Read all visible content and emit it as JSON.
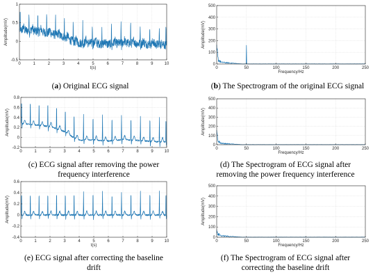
{
  "colors": {
    "signal": "#1f77b4",
    "axis": "#262626",
    "grid": "#d9d9d9",
    "background": "#ffffff"
  },
  "chart_data": [
    {
      "id": "a",
      "type": "line",
      "signal": "ecg-original",
      "xlabel": "t(s)",
      "ylabel": "Amplitude(mV)",
      "xlim": [
        0,
        10
      ],
      "ylim": [
        -0.5,
        1
      ],
      "xticks": [
        0,
        1,
        2,
        3,
        4,
        5,
        6,
        7,
        8,
        9,
        10
      ],
      "yticks": [
        -0.5,
        0,
        0.5,
        1
      ],
      "grid": true,
      "baseline": [
        [
          0,
          0.3
        ],
        [
          1,
          0.28
        ],
        [
          2,
          0.22
        ],
        [
          3,
          0.12
        ],
        [
          3.5,
          0.02
        ],
        [
          4,
          -0.05
        ],
        [
          5,
          -0.05
        ],
        [
          6,
          -0.08
        ],
        [
          7,
          -0.05
        ],
        [
          8,
          -0.06
        ],
        [
          9,
          -0.08
        ],
        [
          10,
          -0.1
        ]
      ],
      "beat_times": [
        0.05,
        0.65,
        1.25,
        1.85,
        2.45,
        3.05,
        3.65,
        4.3,
        4.95,
        5.6,
        6.25,
        6.9,
        7.55,
        8.2,
        8.85,
        9.5,
        9.95
      ],
      "r_peak_height": 0.55,
      "noise_amplitude": 0.12
    },
    {
      "id": "b",
      "type": "line",
      "signal": "spectrum",
      "xlabel": "Frequency/Hz",
      "ylabel": "Amplitude(mV)",
      "xlim": [
        0,
        250
      ],
      "ylim": [
        0,
        500
      ],
      "xticks": [
        0,
        50,
        100,
        150,
        200,
        250
      ],
      "yticks": [
        0,
        100,
        200,
        300,
        400,
        500
      ],
      "grid": true,
      "peaks": [
        [
          0.5,
          130
        ],
        [
          1,
          110
        ],
        [
          2,
          60
        ],
        [
          3,
          45
        ],
        [
          5,
          35
        ],
        [
          8,
          20
        ],
        [
          50,
          160
        ]
      ],
      "decay_end_hz": 45
    },
    {
      "id": "c",
      "type": "line",
      "signal": "ecg-power-removed",
      "xlabel": "",
      "ylabel": "Amplitude(mV)",
      "xlim": [
        0,
        10
      ],
      "ylim": [
        -0.2,
        0.8
      ],
      "xticks": [
        0,
        1,
        2,
        3,
        4,
        5,
        6,
        7,
        8,
        9,
        10
      ],
      "yticks": [
        -0.2,
        0,
        0.2,
        0.4,
        0.6,
        0.8
      ],
      "grid": true,
      "baseline": [
        [
          0,
          0.28
        ],
        [
          1,
          0.25
        ],
        [
          2,
          0.22
        ],
        [
          3,
          0.12
        ],
        [
          3.5,
          0.02
        ],
        [
          4,
          -0.05
        ],
        [
          5,
          -0.05
        ],
        [
          6,
          -0.07
        ],
        [
          7,
          -0.04
        ],
        [
          8,
          -0.06
        ],
        [
          9,
          -0.08
        ],
        [
          10,
          -0.09
        ]
      ],
      "beat_times": [
        0.05,
        0.65,
        1.25,
        1.85,
        2.45,
        3.05,
        3.65,
        4.3,
        4.95,
        5.6,
        6.25,
        6.9,
        7.55,
        8.2,
        8.85,
        9.5,
        9.95
      ],
      "r_peak_height": 0.5,
      "noise_amplitude": 0.015
    },
    {
      "id": "d",
      "type": "line",
      "signal": "spectrum",
      "xlabel": "Frequency/Hz",
      "ylabel": "Amplitude(mV)",
      "xlim": [
        0,
        250
      ],
      "ylim": [
        0,
        500
      ],
      "xticks": [
        0,
        50,
        100,
        150,
        200,
        250
      ],
      "yticks": [
        0,
        100,
        200,
        300,
        400,
        500
      ],
      "grid": true,
      "peaks": [
        [
          0.5,
          125
        ],
        [
          1,
          100
        ],
        [
          2,
          60
        ],
        [
          3,
          45
        ],
        [
          5,
          35
        ],
        [
          8,
          20
        ]
      ],
      "decay_end_hz": 45
    },
    {
      "id": "e",
      "type": "line",
      "signal": "ecg-baseline-corrected",
      "xlabel": "t(s)",
      "ylabel": "Amplitude(mV)",
      "xlim": [
        0,
        10
      ],
      "ylim": [
        -0.4,
        0.6
      ],
      "xticks": [
        0,
        1,
        2,
        3,
        4,
        5,
        6,
        7,
        8,
        9,
        10
      ],
      "yticks": [
        -0.4,
        -0.2,
        0,
        0.2,
        0.4,
        0.6
      ],
      "grid": true,
      "baseline": [
        [
          0,
          0
        ],
        [
          10,
          0
        ]
      ],
      "beat_times": [
        0.05,
        0.65,
        1.25,
        1.85,
        2.45,
        3.05,
        3.65,
        4.3,
        4.95,
        5.6,
        6.25,
        6.9,
        7.55,
        8.2,
        8.85,
        9.5,
        9.95
      ],
      "r_peak_height": 0.42,
      "noise_amplitude": 0.015
    },
    {
      "id": "f",
      "type": "line",
      "signal": "spectrum",
      "xlabel": "Frequency/Hz",
      "ylabel": "Amplitude(mV)",
      "xlim": [
        0,
        250
      ],
      "ylim": [
        0,
        500
      ],
      "xticks": [
        0,
        50,
        100,
        150,
        200,
        250
      ],
      "yticks": [
        0,
        100,
        200,
        300,
        400,
        500
      ],
      "grid": true,
      "peaks": [
        [
          0.5,
          60
        ],
        [
          1,
          45
        ],
        [
          2,
          40
        ],
        [
          3,
          35
        ],
        [
          5,
          30
        ],
        [
          8,
          20
        ]
      ],
      "decay_end_hz": 45
    }
  ],
  "captions": {
    "a": {
      "label": "a",
      "text": " Original ECG signal"
    },
    "b": {
      "label": "b",
      "text": " The Spectrogram of the original ECG signal"
    },
    "c": {
      "line1": "(c) ECG signal after removing the power",
      "line2": "frequency interference"
    },
    "d": {
      "line1": "(d) The Spectrogram of ECG signal after",
      "line2": "removing the power frequency interference"
    },
    "e": {
      "line1": "(e) ECG signal after correcting the baseline",
      "line2": "drift"
    },
    "f": {
      "line1": "(f) The Spectrogram of ECG signal after",
      "line2": "correcting the baseline drift"
    }
  }
}
